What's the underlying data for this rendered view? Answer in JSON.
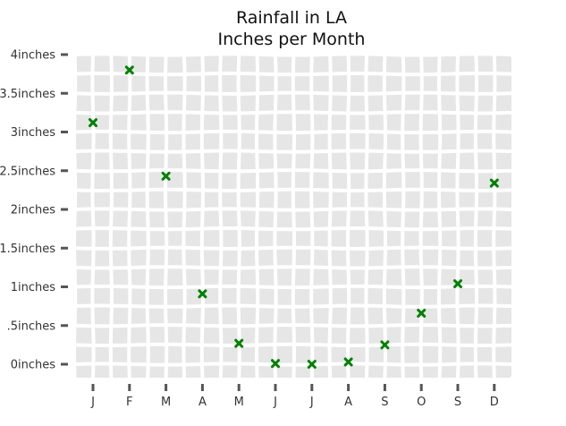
{
  "chart_data": {
    "type": "scatter",
    "title": "Rainfall in LA",
    "subtitle": "Inches per Month",
    "xlabel": "",
    "ylabel": "",
    "categories": [
      "J",
      "F",
      "M",
      "A",
      "M",
      "J",
      "J",
      "A",
      "S",
      "O",
      "S",
      "D"
    ],
    "values": [
      3.12,
      3.8,
      2.43,
      0.91,
      0.27,
      0.01,
      0.0,
      0.03,
      0.25,
      0.66,
      1.04,
      2.34
    ],
    "yticks": [
      0,
      0.5,
      1,
      1.5,
      2,
      2.5,
      3,
      3.5,
      4
    ],
    "ytick_labels": [
      "0inches",
      ".5inches",
      "1inches",
      "1.5inches",
      "2inches",
      "2.5inches",
      "3inches",
      "3.5inches",
      "4inches"
    ],
    "ylim": [
      0,
      4
    ],
    "grid": true,
    "legend": "none",
    "colors": {
      "marker": "#008000",
      "panel": "#e6e6e6",
      "grid": "#ffffff",
      "ticks": "#555555"
    }
  }
}
